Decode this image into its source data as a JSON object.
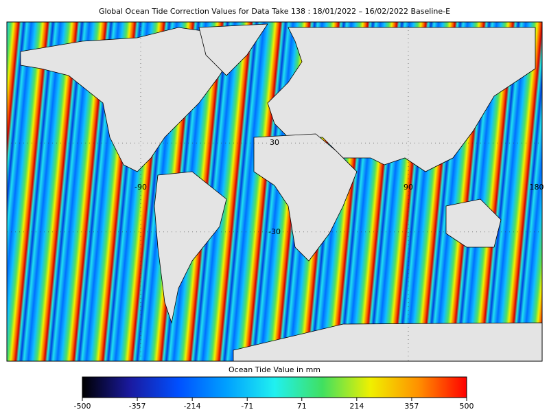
{
  "title": "Global Ocean Tide Correction Values for Data Take 138 : 18/01/2022 – 16/02/2022 Baseline-E",
  "map_labels": {
    "longitude": [
      -90,
      90,
      180
    ],
    "latitude": [
      30,
      -30
    ]
  },
  "colorbar": {
    "label": "Ocean Tide Value in mm",
    "lim": [
      -500,
      500
    ],
    "ticks": [
      -500,
      -357,
      -214,
      -71,
      71,
      214,
      357,
      500
    ],
    "colors": [
      "#000000",
      "#1a1aa0",
      "#0050ff",
      "#00a0ff",
      "#20f0f0",
      "#40e060",
      "#f0f000",
      "#ff9000",
      "#ff0000"
    ]
  }
}
